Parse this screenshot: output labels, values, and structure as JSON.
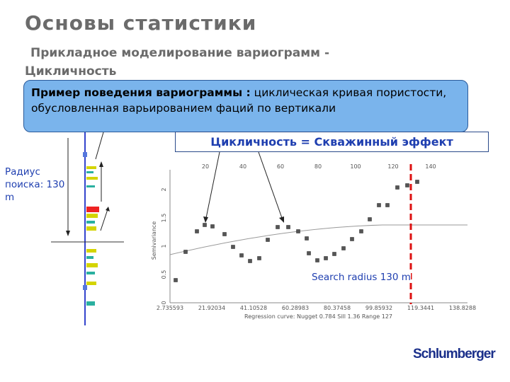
{
  "slide": {
    "title": "Основы статистики",
    "subtitle": "Прикладное моделирование вариограмм - Цикличность",
    "callout": {
      "bold": "Пример поведения вариограммы :",
      "text": "циклическая кривая пористости, обусловленная варьированием фаций по вертикали"
    },
    "effect_label": "Цикличность = Скважинный эффект",
    "radius_label": "Радиус поиска: 130 m",
    "chart": {
      "search_label": "Search radius 130 m",
      "y_axis_title": "Semivariance",
      "top_ticks": [
        "20",
        "40",
        "60",
        "80",
        "100",
        "120",
        "140"
      ],
      "bottom_ticks": [
        "2.735593",
        "21.92034",
        "41.10528",
        "60.28983",
        "80.37458",
        "99.85932",
        "119.3441",
        "138.8288"
      ],
      "y_ticks": [
        "0",
        "0.5",
        "1",
        "1.5",
        "2"
      ],
      "footer": "Regression curve: Nugget 0.784 Sill 1.36 Range 127"
    },
    "logo": "Schlumberger"
  }
}
